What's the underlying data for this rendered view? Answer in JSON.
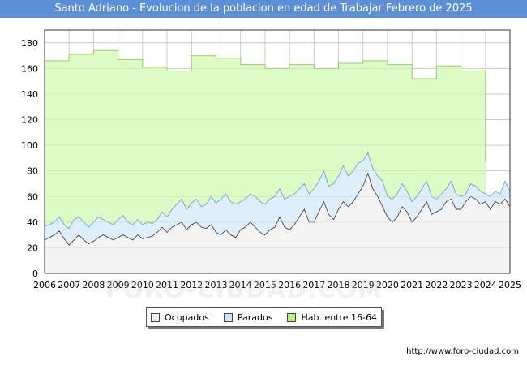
{
  "title": "Santo Adriano - Evolucion de la poblacion en edad de Trabajar Febrero de 2025",
  "source": "http://www.foro-ciudad.com",
  "watermark": "FORO-CIUDAD.COM",
  "colors": {
    "header": "#5b8fd6",
    "hab_fill": "#ddfbc4",
    "hab_line": "#99cc66",
    "parados_fill": "#deeefa",
    "ocupados_fill": "#f4f4f4",
    "ocupados_line": "#333333",
    "parados_line": "#6699cc"
  },
  "legend": {
    "ocupados": "Ocupados",
    "parados": "Parados",
    "hab": "Hab. entre 16-64"
  },
  "chart_data": {
    "type": "area",
    "title": "Santo Adriano - Evolucion de la poblacion en edad de Trabajar Febrero de 2025",
    "xlabel": "",
    "ylabel": "",
    "ylim": [
      0,
      190
    ],
    "yticks": [
      0,
      20,
      40,
      60,
      80,
      100,
      120,
      140,
      160,
      180
    ],
    "xlim": [
      2006,
      2025
    ],
    "xticks": [
      "2006",
      "2007",
      "2008",
      "2009",
      "2010",
      "2011",
      "2012",
      "2013",
      "2014",
      "2015",
      "2016",
      "2017",
      "2018",
      "2019",
      "2020",
      "2021",
      "2022",
      "2023",
      "2024",
      "2025"
    ],
    "grid": true,
    "legend_position": "bottom",
    "series": [
      {
        "name": "Hab. entre 16-64",
        "type": "step",
        "x": [
          2006,
          2007,
          2008,
          2009,
          2010,
          2011,
          2012,
          2013,
          2014,
          2015,
          2016,
          2017,
          2018,
          2019,
          2020,
          2021,
          2022,
          2023,
          2024
        ],
        "values": [
          166,
          171,
          174,
          167,
          161,
          158,
          170,
          168,
          163,
          160,
          163,
          160,
          164,
          166,
          163,
          152,
          162,
          158,
          87
        ]
      },
      {
        "name": "Parados",
        "type": "line",
        "x": [
          2006.0,
          2006.2,
          2006.4,
          2006.6,
          2006.8,
          2007.0,
          2007.2,
          2007.4,
          2007.6,
          2007.8,
          2008.0,
          2008.2,
          2008.4,
          2008.6,
          2008.8,
          2009.0,
          2009.2,
          2009.4,
          2009.6,
          2009.8,
          2010.0,
          2010.2,
          2010.4,
          2010.6,
          2010.8,
          2011.0,
          2011.2,
          2011.4,
          2011.6,
          2011.8,
          2012.0,
          2012.2,
          2012.4,
          2012.6,
          2012.8,
          2013.0,
          2013.2,
          2013.4,
          2013.6,
          2013.8,
          2014.0,
          2014.2,
          2014.4,
          2014.6,
          2014.8,
          2015.0,
          2015.2,
          2015.4,
          2015.6,
          2015.8,
          2016.0,
          2016.2,
          2016.4,
          2016.6,
          2016.8,
          2017.0,
          2017.2,
          2017.4,
          2017.6,
          2017.8,
          2018.0,
          2018.2,
          2018.4,
          2018.6,
          2018.8,
          2019.0,
          2019.2,
          2019.4,
          2019.6,
          2019.8,
          2020.0,
          2020.2,
          2020.4,
          2020.6,
          2020.8,
          2021.0,
          2021.2,
          2021.4,
          2021.6,
          2021.8,
          2022.0,
          2022.2,
          2022.4,
          2022.6,
          2022.8,
          2023.0,
          2023.2,
          2023.4,
          2023.6,
          2023.8,
          2024.0,
          2024.2,
          2024.4,
          2024.6,
          2024.8,
          2025.0
        ],
        "values": [
          37,
          38,
          40,
          44,
          38,
          35,
          42,
          44,
          40,
          36,
          40,
          44,
          42,
          40,
          38,
          42,
          45,
          40,
          38,
          42,
          38,
          40,
          39,
          42,
          48,
          44,
          50,
          54,
          58,
          50,
          55,
          58,
          52,
          54,
          60,
          55,
          58,
          62,
          56,
          54,
          56,
          58,
          62,
          60,
          56,
          54,
          58,
          60,
          66,
          58,
          60,
          62,
          66,
          70,
          62,
          66,
          72,
          80,
          68,
          70,
          76,
          84,
          76,
          80,
          86,
          88,
          94,
          82,
          76,
          72,
          60,
          58,
          62,
          70,
          64,
          56,
          60,
          66,
          72,
          60,
          58,
          62,
          66,
          72,
          62,
          60,
          62,
          70,
          68,
          64,
          62,
          60,
          64,
          62,
          72,
          64
        ]
      },
      {
        "name": "Ocupados",
        "type": "line",
        "x": [
          2006.0,
          2006.2,
          2006.4,
          2006.6,
          2006.8,
          2007.0,
          2007.2,
          2007.4,
          2007.6,
          2007.8,
          2008.0,
          2008.2,
          2008.4,
          2008.6,
          2008.8,
          2009.0,
          2009.2,
          2009.4,
          2009.6,
          2009.8,
          2010.0,
          2010.2,
          2010.4,
          2010.6,
          2010.8,
          2011.0,
          2011.2,
          2011.4,
          2011.6,
          2011.8,
          2012.0,
          2012.2,
          2012.4,
          2012.6,
          2012.8,
          2013.0,
          2013.2,
          2013.4,
          2013.6,
          2013.8,
          2014.0,
          2014.2,
          2014.4,
          2014.6,
          2014.8,
          2015.0,
          2015.2,
          2015.4,
          2015.6,
          2015.8,
          2016.0,
          2016.2,
          2016.4,
          2016.6,
          2016.8,
          2017.0,
          2017.2,
          2017.4,
          2017.6,
          2017.8,
          2018.0,
          2018.2,
          2018.4,
          2018.6,
          2018.8,
          2019.0,
          2019.2,
          2019.4,
          2019.6,
          2019.8,
          2020.0,
          2020.2,
          2020.4,
          2020.6,
          2020.8,
          2021.0,
          2021.2,
          2021.4,
          2021.6,
          2021.8,
          2022.0,
          2022.2,
          2022.4,
          2022.6,
          2022.8,
          2023.0,
          2023.2,
          2023.4,
          2023.6,
          2023.8,
          2024.0,
          2024.2,
          2024.4,
          2024.6,
          2024.8,
          2025.0
        ],
        "values": [
          26,
          28,
          30,
          33,
          27,
          22,
          26,
          30,
          26,
          23,
          25,
          28,
          30,
          28,
          26,
          28,
          30,
          28,
          26,
          30,
          27,
          28,
          29,
          32,
          36,
          32,
          36,
          38,
          40,
          34,
          38,
          40,
          36,
          35,
          38,
          32,
          30,
          34,
          30,
          28,
          34,
          36,
          40,
          36,
          32,
          30,
          34,
          36,
          44,
          36,
          34,
          38,
          44,
          50,
          40,
          40,
          48,
          56,
          46,
          42,
          50,
          56,
          52,
          56,
          62,
          68,
          78,
          66,
          60,
          52,
          44,
          40,
          44,
          52,
          48,
          40,
          44,
          50,
          56,
          46,
          48,
          50,
          56,
          58,
          50,
          50,
          56,
          60,
          58,
          54,
          56,
          50,
          56,
          54,
          58,
          52
        ]
      }
    ]
  }
}
